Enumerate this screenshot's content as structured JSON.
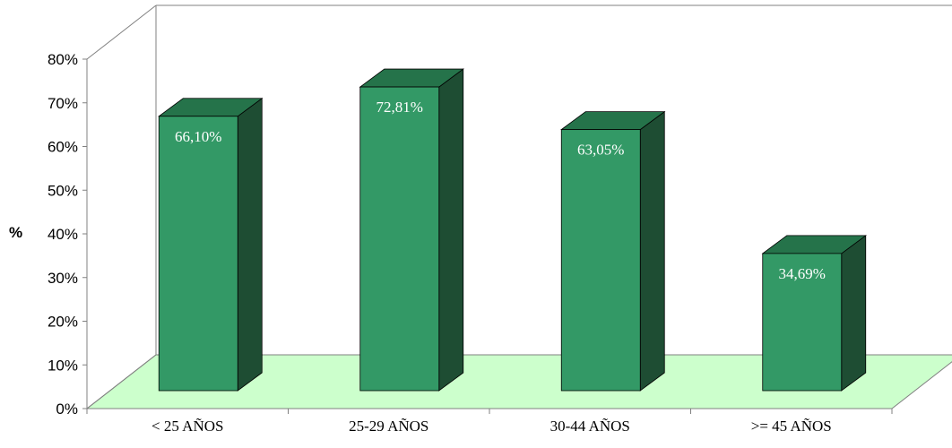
{
  "chart_data": {
    "type": "bar",
    "categories": [
      "< 25 AÑOS",
      "25-29 AÑOS",
      "30-44 AÑOS",
      ">= 45 AÑOS"
    ],
    "values": [
      66.1,
      72.81,
      63.05,
      34.69
    ],
    "data_labels": [
      "66,10%",
      "72,81%",
      "63,05%",
      "34,69%"
    ],
    "ylabel": "%",
    "ylim": [
      0,
      80
    ],
    "yticks": [
      0,
      10,
      20,
      30,
      40,
      50,
      60,
      70,
      80
    ],
    "ytick_labels": [
      "0%",
      "10%",
      "20%",
      "30%",
      "40%",
      "50%",
      "60%",
      "70%",
      "80%"
    ],
    "style": "3d-column",
    "grid": false,
    "legend": "none"
  },
  "colors": {
    "bar_front": "#339966",
    "bar_top": "#25734a",
    "bar_side": "#1e4d33",
    "floor": "#ccffcc",
    "axis": "#808080",
    "label_text": "#ffffff"
  }
}
